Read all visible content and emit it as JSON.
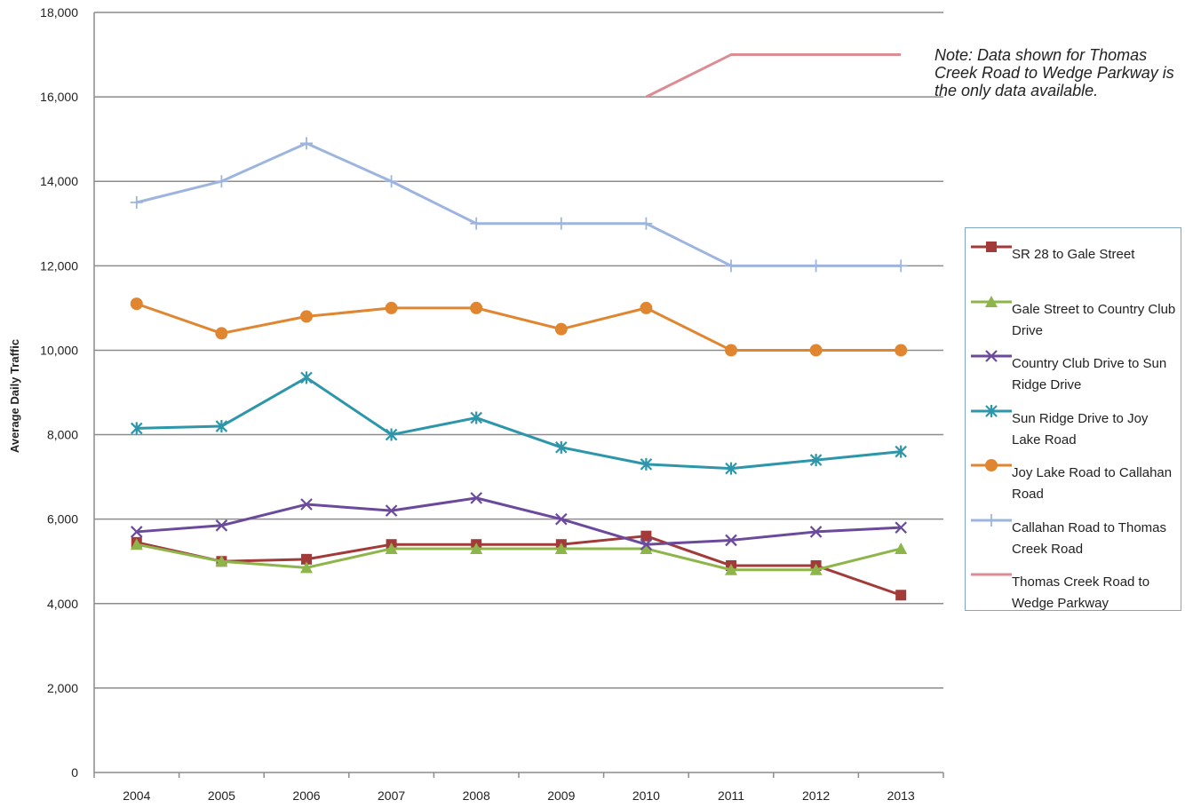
{
  "chart_data": {
    "type": "line",
    "title": "",
    "xlabel": "",
    "ylabel": "Average Daily Traffic",
    "ylim": [
      0,
      18000
    ],
    "yticks": [
      0,
      2000,
      4000,
      6000,
      8000,
      10000,
      12000,
      14000,
      16000,
      18000
    ],
    "ytick_labels": [
      "0",
      "2,000",
      "4,000",
      "6,000",
      "8,000",
      "10,000",
      "12,000",
      "14,000",
      "16,000",
      "18,000"
    ],
    "categories": [
      "2004",
      "2005",
      "2006",
      "2007",
      "2008",
      "2009",
      "2010",
      "2011",
      "2012",
      "2013"
    ],
    "grid": true,
    "legend_position": "right",
    "series": [
      {
        "name": "SR 28 to Gale Street",
        "color": "#a33a3a",
        "marker": "square",
        "values": [
          5450,
          5000,
          5050,
          5400,
          5400,
          5400,
          5600,
          4900,
          4900,
          4200
        ]
      },
      {
        "name": "Gale Street to Country Club Drive",
        "color": "#8db54a",
        "marker": "triangle",
        "values": [
          5400,
          5000,
          4850,
          5300,
          5300,
          5300,
          5300,
          4800,
          4800,
          5300
        ]
      },
      {
        "name": "Country Club Drive to Sun Ridge Drive",
        "color": "#6b4a9c",
        "marker": "x",
        "values": [
          5700,
          5850,
          6350,
          6200,
          6500,
          6000,
          5400,
          5500,
          5700,
          5800
        ]
      },
      {
        "name": "Sun Ridge Drive to Joy Lake Road",
        "color": "#2e96aa",
        "marker": "asterisk",
        "values": [
          8150,
          8200,
          9350,
          8000,
          8400,
          7700,
          7300,
          7200,
          7400,
          7600
        ]
      },
      {
        "name": "Joy Lake Road to Callahan Road",
        "color": "#e08530",
        "marker": "circle",
        "values": [
          11100,
          10400,
          10800,
          11000,
          11000,
          10500,
          11000,
          10000,
          10000,
          10000
        ]
      },
      {
        "name": "Callahan Road to Thomas Creek Road",
        "color": "#9db5de",
        "marker": "plus",
        "values": [
          13500,
          14000,
          14900,
          14000,
          13000,
          13000,
          13000,
          12000,
          12000,
          12000
        ]
      },
      {
        "name": "Thomas Creek Road to Wedge Parkway",
        "color": "#dc8c93",
        "marker": "none",
        "values": [
          null,
          null,
          null,
          null,
          null,
          null,
          16000,
          17000,
          17000,
          17000
        ]
      }
    ],
    "annotations": [
      "Note:   Data shown for Thomas Creek Road to Wedge Parkway is the only data available."
    ]
  }
}
